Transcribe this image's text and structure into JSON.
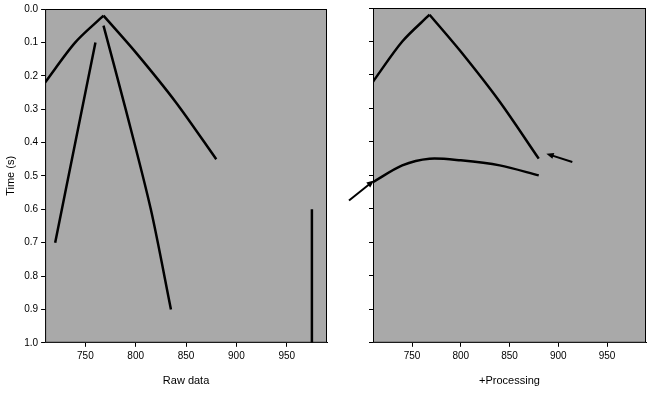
{
  "chart_data": [
    {
      "type": "line",
      "xlabel": "Raw data",
      "ylabel": "Time (s)",
      "xlim": [
        710,
        990
      ],
      "xticks": [
        750,
        800,
        850,
        900,
        950
      ],
      "ylim": [
        1,
        0
      ],
      "yticks": [
        {
          "value": 0,
          "label": "0.0"
        },
        0.1,
        0.2,
        0.3,
        0.4,
        0.5,
        0.6,
        0.7,
        0.8,
        0.9,
        {
          "value": 1,
          "label": "1.0"
        }
      ],
      "grid": false,
      "tick_labels": true,
      "series": [
        {
          "color": "#000000",
          "x": [
            710,
            740,
            768
          ],
          "values": [
            0.22,
            0.1,
            0.02
          ]
        },
        {
          "color": "#000000",
          "x": [
            768,
            800,
            840,
            880
          ],
          "values": [
            0.02,
            0.13,
            0.28,
            0.45
          ]
        },
        {
          "color": "#000000",
          "x": [
            768,
            790,
            815,
            835
          ],
          "values": [
            0.05,
            0.3,
            0.6,
            0.9
          ]
        },
        {
          "color": "#000000",
          "x": [
            760,
            740,
            720
          ],
          "values": [
            0.1,
            0.4,
            0.7
          ]
        },
        {
          "color": "#000000",
          "x": [
            975,
            975
          ],
          "values": [
            0.6,
            1
          ]
        }
      ]
    },
    {
      "type": "line",
      "xlabel": "+Processing",
      "xlim": [
        710,
        990
      ],
      "xticks": [
        750,
        800,
        850,
        900,
        950
      ],
      "ylim": [
        1,
        0
      ],
      "yticks": [
        {
          "value": 0,
          "label": "0.0"
        },
        0.1,
        0.2,
        0.3,
        0.4,
        0.5,
        0.6,
        0.7,
        0.8,
        0.9,
        {
          "value": 1,
          "label": "1.0"
        }
      ],
      "grid": false,
      "tick_labels": "x",
      "series": [
        {
          "color": "#000000",
          "x": [
            710,
            740,
            768
          ],
          "values": [
            0.22,
            0.1,
            0.02
          ]
        },
        {
          "color": "#000000",
          "x": [
            768,
            800,
            840,
            880
          ],
          "values": [
            0.02,
            0.13,
            0.28,
            0.45
          ]
        },
        {
          "color": "#000000",
          "x": [
            710,
            740,
            768,
            800,
            840,
            880
          ],
          "values": [
            0.52,
            0.47,
            0.45,
            0.455,
            0.47,
            0.5
          ]
        }
      ]
    }
  ]
}
